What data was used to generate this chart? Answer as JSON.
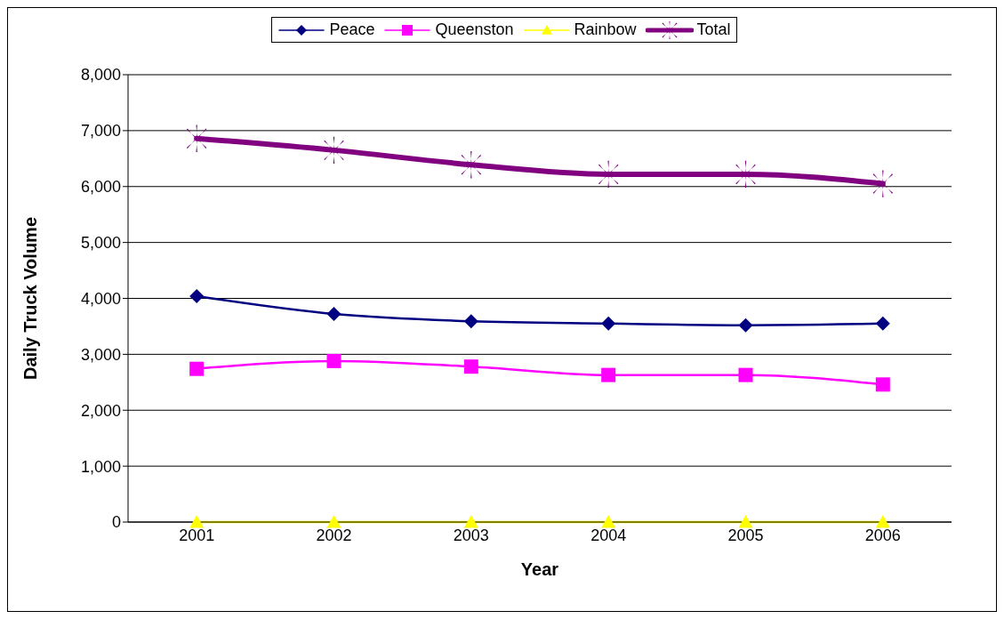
{
  "chart_data": {
    "type": "line",
    "xlabel": "Year",
    "ylabel": "Daily Truck Volume",
    "categories": [
      "2001",
      "2002",
      "2003",
      "2004",
      "2005",
      "2006"
    ],
    "series": [
      {
        "name": "Peace",
        "color": "#000080",
        "marker": "diamond",
        "values": [
          4040,
          3720,
          3590,
          3550,
          3520,
          3550
        ]
      },
      {
        "name": "Queenston",
        "color": "#ff00ff",
        "marker": "square",
        "values": [
          2740,
          2880,
          2780,
          2630,
          2630,
          2460
        ]
      },
      {
        "name": "Rainbow",
        "color": "#ffff00",
        "marker": "triangle",
        "values": [
          0,
          0,
          0,
          0,
          0,
          0
        ]
      },
      {
        "name": "Total",
        "color": "#800080",
        "marker": "cross",
        "values": [
          6860,
          6650,
          6390,
          6220,
          6220,
          6050
        ]
      }
    ],
    "ylim": [
      0,
      8000
    ],
    "yticks": [
      {
        "value": 0,
        "label": "0"
      },
      {
        "value": 1000,
        "label": "1,000"
      },
      {
        "value": 2000,
        "label": "2,000"
      },
      {
        "value": 3000,
        "label": "3,000"
      },
      {
        "value": 4000,
        "label": "4,000"
      },
      {
        "value": 5000,
        "label": "5,000"
      },
      {
        "value": 6000,
        "label": "6,000"
      },
      {
        "value": 7000,
        "label": "7,000"
      },
      {
        "value": 8000,
        "label": "8,000"
      }
    ],
    "grid": "y",
    "legend": "top",
    "line_style": "solid"
  }
}
